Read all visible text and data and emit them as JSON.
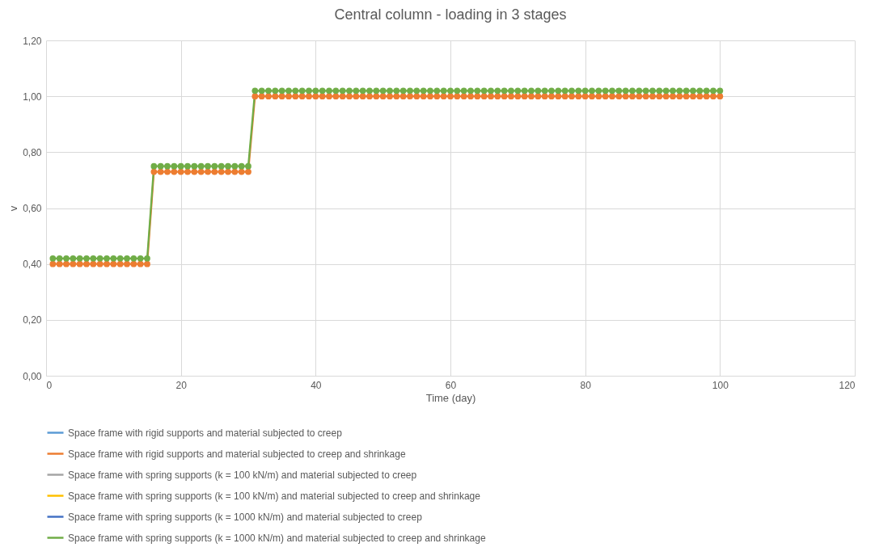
{
  "chart_data": {
    "type": "line",
    "title": "Central column - loading in 3 stages",
    "xlabel": "Time (day)",
    "ylabel": "v",
    "x": [
      1,
      2,
      3,
      4,
      5,
      6,
      7,
      8,
      9,
      10,
      11,
      12,
      13,
      14,
      15,
      16,
      17,
      18,
      19,
      20,
      21,
      22,
      23,
      24,
      25,
      26,
      27,
      28,
      29,
      30,
      31,
      32,
      33,
      34,
      35,
      36,
      37,
      38,
      39,
      40,
      41,
      42,
      43,
      44,
      45,
      46,
      47,
      48,
      49,
      50,
      51,
      52,
      53,
      54,
      55,
      56,
      57,
      58,
      59,
      60,
      61,
      62,
      63,
      64,
      65,
      66,
      67,
      68,
      69,
      70,
      71,
      72,
      73,
      74,
      75,
      76,
      77,
      78,
      79,
      80,
      81,
      82,
      83,
      84,
      85,
      86,
      87,
      88,
      89,
      90,
      91,
      92,
      93,
      94,
      95,
      96,
      97,
      98,
      99,
      100
    ],
    "xlim": [
      0,
      120
    ],
    "xticks": [
      0,
      20,
      40,
      60,
      80,
      100,
      120
    ],
    "ylim": [
      0,
      1.2
    ],
    "yticks": [
      {
        "value": 0,
        "label": "0,00"
      },
      {
        "value": 0.2,
        "label": "0,20"
      },
      {
        "value": 0.4,
        "label": "0,40"
      },
      {
        "value": 0.6,
        "label": "0,60"
      },
      {
        "value": 0.8,
        "label": "0,80"
      },
      {
        "value": 1,
        "label": "1,00"
      },
      {
        "value": 1.2,
        "label": "1,20"
      }
    ],
    "grid": true,
    "legend": "bottom",
    "marker": "circle",
    "series": [
      {
        "name": "Space frame with rigid supports and material subjected to creep",
        "color": "#5b9bd5",
        "values": [
          null,
          null,
          null,
          null,
          null,
          null,
          null,
          null,
          null,
          null,
          null,
          null,
          null,
          null,
          null,
          null,
          null,
          null,
          null,
          null,
          null,
          null,
          null,
          null,
          null,
          null,
          null,
          null,
          null,
          null,
          null,
          null,
          null,
          null,
          null,
          null,
          null,
          null,
          null,
          null,
          null,
          null,
          null,
          null,
          null,
          null,
          null,
          null,
          null,
          null,
          null,
          null,
          null,
          null,
          null,
          null,
          null,
          null,
          null,
          null,
          null,
          null,
          null,
          null,
          null,
          null,
          null,
          null,
          null,
          null,
          null,
          null,
          null,
          null,
          null,
          null,
          null,
          null,
          null,
          null,
          null,
          null,
          null,
          null,
          null,
          null,
          null,
          null,
          null,
          null,
          null,
          null,
          null,
          null,
          null,
          null,
          null,
          null,
          null,
          null
        ]
      },
      {
        "name": "Space frame with rigid supports and material subjected to creep and shrinkage",
        "color": "#ed7d31",
        "line_style": "solid",
        "values": [
          0.4,
          0.4,
          0.4,
          0.4,
          0.4,
          0.4,
          0.4,
          0.4,
          0.4,
          0.4,
          0.4,
          0.4,
          0.4,
          0.4,
          0.4,
          0.73,
          0.73,
          0.73,
          0.73,
          0.73,
          0.73,
          0.73,
          0.73,
          0.73,
          0.73,
          0.73,
          0.73,
          0.73,
          0.73,
          0.73,
          1,
          1,
          1,
          1,
          1,
          1,
          1,
          1,
          1,
          1,
          1,
          1,
          1,
          1,
          1,
          1,
          1,
          1,
          1,
          1,
          1,
          1,
          1,
          1,
          1,
          1,
          1,
          1,
          1,
          1,
          1,
          1,
          1,
          1,
          1,
          1,
          1,
          1,
          1,
          1,
          1,
          1,
          1,
          1,
          1,
          1,
          1,
          1,
          1,
          1,
          1,
          1,
          1,
          1,
          1,
          1,
          1,
          1,
          1,
          1,
          1,
          1,
          1,
          1,
          1,
          1,
          1,
          1,
          1,
          1
        ]
      },
      {
        "name": "Space frame with spring supports (k = 100 kN/m) and material subjected to creep",
        "color": "#a5a5a5",
        "values": [
          null,
          null,
          null,
          null,
          null,
          null,
          null,
          null,
          null,
          null,
          null,
          null,
          null,
          null,
          null,
          null,
          null,
          null,
          null,
          null,
          null,
          null,
          null,
          null,
          null,
          null,
          null,
          null,
          null,
          null,
          null,
          null,
          null,
          null,
          null,
          null,
          null,
          null,
          null,
          null,
          null,
          null,
          null,
          null,
          null,
          null,
          null,
          null,
          null,
          null,
          null,
          null,
          null,
          null,
          null,
          null,
          null,
          null,
          null,
          null,
          null,
          null,
          null,
          null,
          null,
          null,
          null,
          null,
          null,
          null,
          null,
          null,
          null,
          null,
          null,
          null,
          null,
          null,
          null,
          null,
          null,
          null,
          null,
          null,
          null,
          null,
          null,
          null,
          null,
          null,
          null,
          null,
          null,
          null,
          null,
          null,
          null,
          null,
          null,
          null
        ]
      },
      {
        "name": "Space frame with spring supports (k = 100 kN/m) and material subjected to creep and shrinkage",
        "color": "#ffc000",
        "values": [
          null,
          null,
          null,
          null,
          null,
          null,
          null,
          null,
          null,
          null,
          null,
          null,
          null,
          null,
          null,
          null,
          null,
          null,
          null,
          null,
          null,
          null,
          null,
          null,
          null,
          null,
          null,
          null,
          null,
          null,
          null,
          null,
          null,
          null,
          null,
          null,
          null,
          null,
          null,
          null,
          null,
          null,
          null,
          null,
          null,
          null,
          null,
          null,
          null,
          null,
          null,
          null,
          null,
          null,
          null,
          null,
          null,
          null,
          null,
          null,
          null,
          null,
          null,
          null,
          null,
          null,
          null,
          null,
          null,
          null,
          null,
          null,
          null,
          null,
          null,
          null,
          null,
          null,
          null,
          null,
          null,
          null,
          null,
          null,
          null,
          null,
          null,
          null,
          null,
          null,
          null,
          null,
          null,
          null,
          null,
          null,
          null,
          null,
          null,
          null
        ]
      },
      {
        "name": "Space frame with spring supports (k = 1000 kN/m) and material subjected to creep",
        "color": "#4472c4",
        "values": [
          null,
          null,
          null,
          null,
          null,
          null,
          null,
          null,
          null,
          null,
          null,
          null,
          null,
          null,
          null,
          null,
          null,
          null,
          null,
          null,
          null,
          null,
          null,
          null,
          null,
          null,
          null,
          null,
          null,
          null,
          null,
          null,
          null,
          null,
          null,
          null,
          null,
          null,
          null,
          null,
          null,
          null,
          null,
          null,
          null,
          null,
          null,
          null,
          null,
          null,
          null,
          null,
          null,
          null,
          null,
          null,
          null,
          null,
          null,
          null,
          null,
          null,
          null,
          null,
          null,
          null,
          null,
          null,
          null,
          null,
          null,
          null,
          null,
          null,
          null,
          null,
          null,
          null,
          null,
          null,
          null,
          null,
          null,
          null,
          null,
          null,
          null,
          null,
          null,
          null,
          null,
          null,
          null,
          null,
          null,
          null,
          null,
          null,
          null,
          null
        ]
      },
      {
        "name": "Space frame with spring supports (k = 1000 kN/m) and material subjected to creep and shrinkage",
        "color": "#70ad47",
        "line_style": "solid",
        "values": [
          0.42,
          0.42,
          0.42,
          0.42,
          0.42,
          0.42,
          0.42,
          0.42,
          0.42,
          0.42,
          0.42,
          0.42,
          0.42,
          0.42,
          0.42,
          0.75,
          0.75,
          0.75,
          0.75,
          0.75,
          0.75,
          0.75,
          0.75,
          0.75,
          0.75,
          0.75,
          0.75,
          0.75,
          0.75,
          0.75,
          1.02,
          1.02,
          1.02,
          1.02,
          1.02,
          1.02,
          1.02,
          1.02,
          1.02,
          1.02,
          1.02,
          1.02,
          1.02,
          1.02,
          1.02,
          1.02,
          1.02,
          1.02,
          1.02,
          1.02,
          1.02,
          1.02,
          1.02,
          1.02,
          1.02,
          1.02,
          1.02,
          1.02,
          1.02,
          1.02,
          1.02,
          1.02,
          1.02,
          1.02,
          1.02,
          1.02,
          1.02,
          1.02,
          1.02,
          1.02,
          1.02,
          1.02,
          1.02,
          1.02,
          1.02,
          1.02,
          1.02,
          1.02,
          1.02,
          1.02,
          1.02,
          1.02,
          1.02,
          1.02,
          1.02,
          1.02,
          1.02,
          1.02,
          1.02,
          1.02,
          1.02,
          1.02,
          1.02,
          1.02,
          1.02,
          1.02,
          1.02,
          1.02,
          1.02,
          1.02
        ]
      }
    ]
  }
}
